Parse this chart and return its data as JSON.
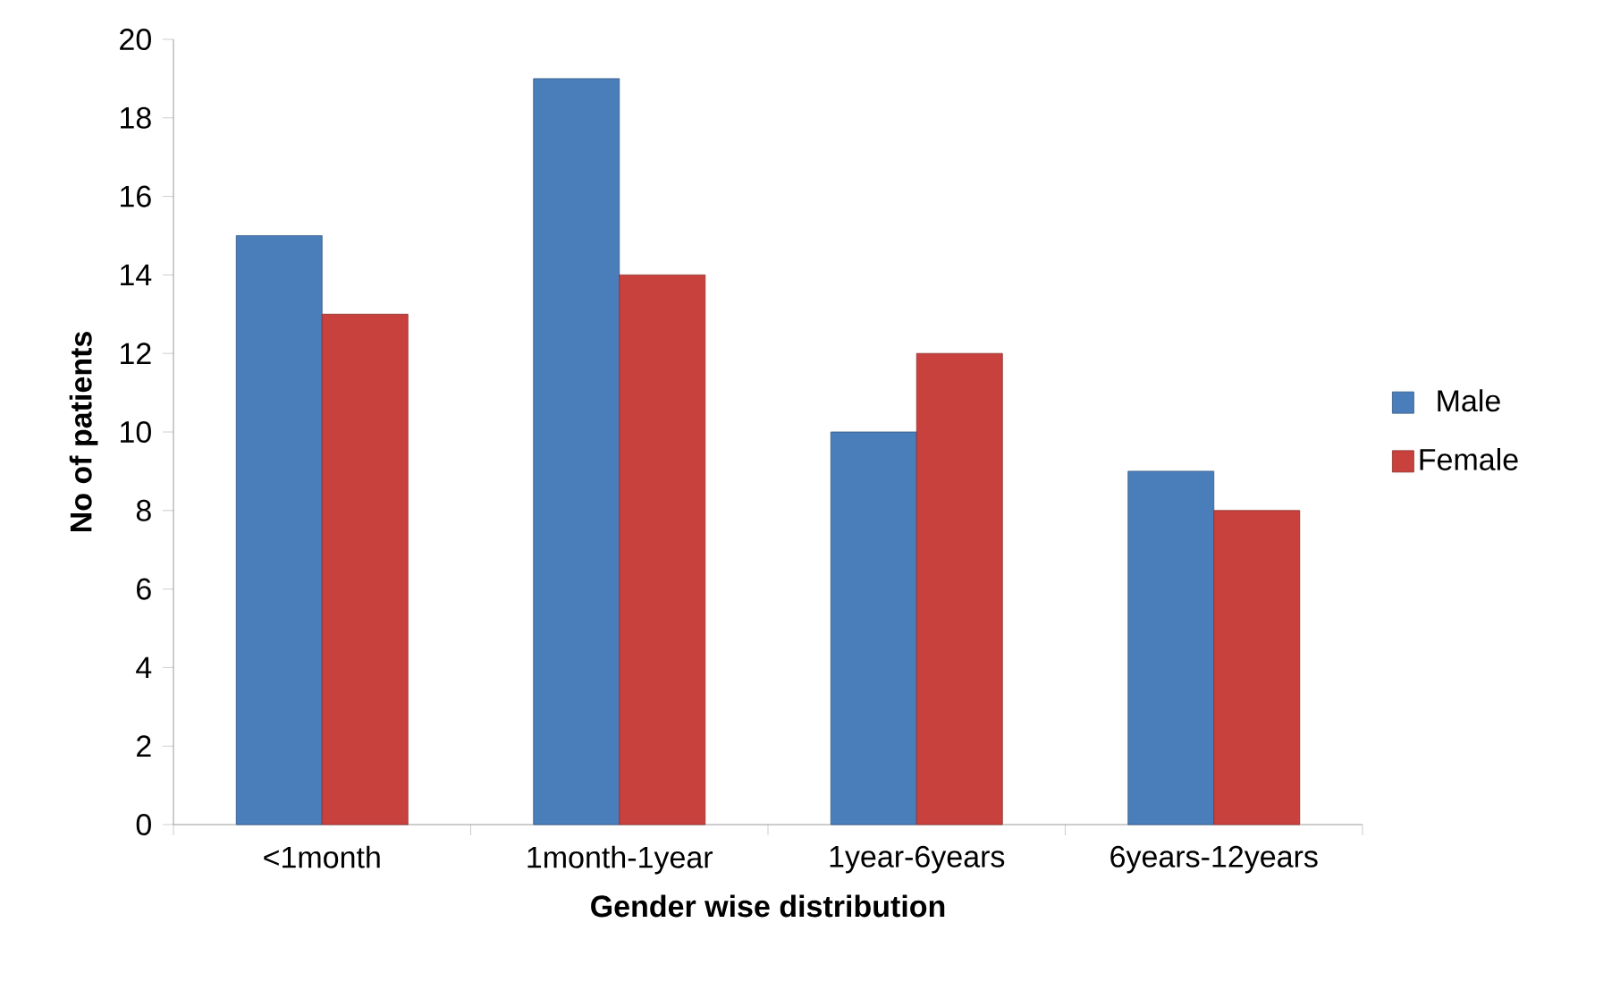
{
  "chart_data": {
    "type": "bar",
    "xlabel": "**Gender wise distribution**",
    "ylabel": "**No of patients**",
    "categories": [
      "<1month",
      "1month-1year",
      "1year-6years",
      "6years-12years"
    ],
    "series": [
      {
        "name": "Male",
        "color": "#4a7ebb",
        "values": [
          15,
          19,
          10,
          9
        ]
      },
      {
        "name": "Female",
        "color": "#c9413d",
        "values": [
          13,
          14,
          12,
          8
        ]
      }
    ],
    "ylim": [
      0,
      20
    ],
    "yticks": [
      0,
      2,
      4,
      6,
      8,
      10,
      12,
      14,
      16,
      18,
      20
    ],
    "legend": "right"
  }
}
